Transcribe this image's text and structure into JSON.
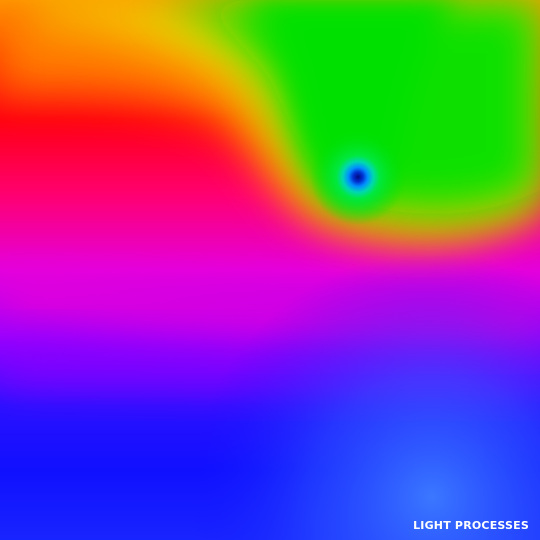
{
  "image": {
    "watermark_text": "LIGHT PROCESSES",
    "palette": {
      "green": "#00e000",
      "yellow": "#e8e000",
      "orange": "#ff8a00",
      "red": "#ff0010",
      "magenta": "#e800e0",
      "purple": "#9a00ff",
      "blue": "#1010ff",
      "light_blue": "#3a78ff",
      "vortex_core": "#000c9a",
      "watermark_color": "#ffffff"
    }
  }
}
